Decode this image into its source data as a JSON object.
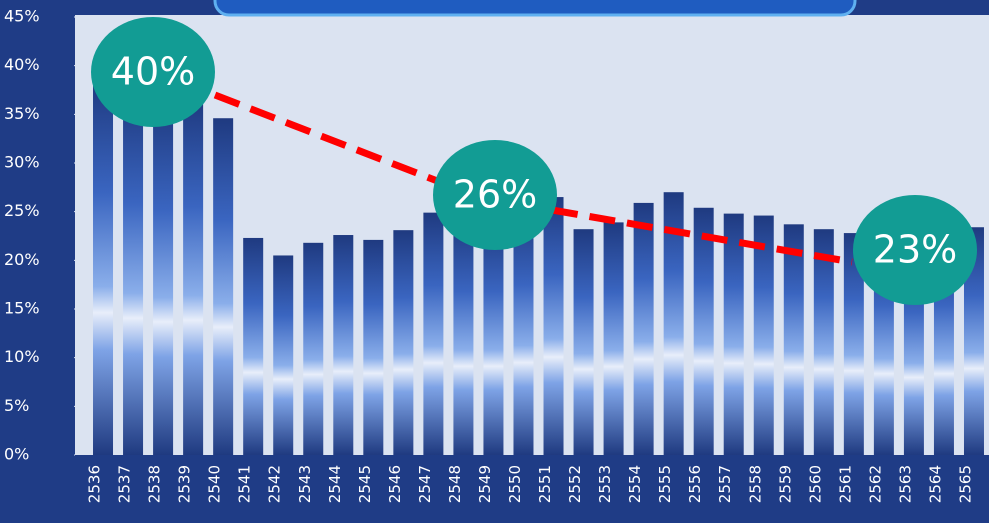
{
  "chart_data": {
    "type": "bar",
    "categories": [
      "2536",
      "2537",
      "2538",
      "2539",
      "2540",
      "2541",
      "2542",
      "2543",
      "2544",
      "2545",
      "2546",
      "2547",
      "2548",
      "2549",
      "2550",
      "2551",
      "2552",
      "2553",
      "2554",
      "2555",
      "2556",
      "2557",
      "2558",
      "2559",
      "2560",
      "2561",
      "2562",
      "2563",
      "2564",
      "2565"
    ],
    "values": [
      38.5,
      37,
      36,
      36.5,
      34.6,
      22.3,
      20.5,
      21.8,
      22.6,
      22.1,
      23.1,
      24.9,
      24,
      24,
      25,
      26.5,
      23.2,
      23.9,
      25.9,
      27,
      25.4,
      24.8,
      24.6,
      23.7,
      23.2,
      22.8,
      22,
      21,
      22,
      23.4
    ],
    "ylim": [
      0,
      45
    ],
    "yticks": [
      {
        "value": 0,
        "label": "0%"
      },
      {
        "value": 5,
        "label": "5%"
      },
      {
        "value": 10,
        "label": "10%"
      },
      {
        "value": 15,
        "label": "15%"
      },
      {
        "value": 20,
        "label": "20%"
      },
      {
        "value": 25,
        "label": "25%"
      },
      {
        "value": 30,
        "label": "30%"
      },
      {
        "value": 35,
        "label": "35%"
      },
      {
        "value": 40,
        "label": "40%"
      },
      {
        "value": 45,
        "label": "45%"
      }
    ],
    "annotations": [
      "40%",
      "26%",
      "23%"
    ],
    "color": "#2b4c9e",
    "trend_color": "#ff0000",
    "annotation_color": "#129c94"
  }
}
